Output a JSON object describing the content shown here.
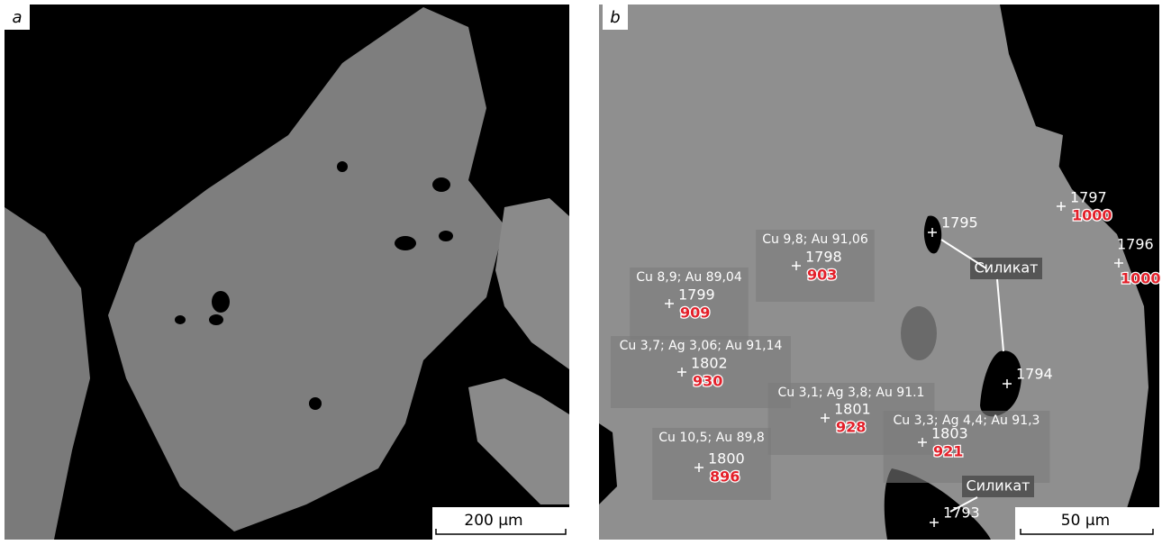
{
  "panels": [
    {
      "label": "a",
      "scale_bar": "200 μm"
    },
    {
      "label": "b",
      "scale_bar": "50 μm",
      "points": [
        {
          "id": "1797",
          "value": "1000"
        },
        {
          "id": "1795"
        },
        {
          "id": "1796",
          "value": "1000"
        },
        {
          "composition": "Cu 9,8; Au 91,06",
          "id": "1798",
          "value": "903"
        },
        {
          "composition": "Cu 8,9; Au 89,04",
          "id": "1799",
          "value": "909"
        },
        {
          "composition": "Cu 3,7; Ag 3,06; Au 91,14",
          "id": "1802",
          "value": "930"
        },
        {
          "id": "1794"
        },
        {
          "composition": "Cu 3,1; Ag 3,8; Au 91.1",
          "id": "1801",
          "value": "928"
        },
        {
          "composition": "Cu 3,3; Ag 4,4; Au 91,3",
          "id": "1803",
          "value": "921"
        },
        {
          "composition": "Cu 10,5; Au 89,8",
          "id": "1800",
          "value": "896"
        },
        {
          "id": "1793"
        }
      ],
      "silicate_labels": [
        "Силикат",
        "Силикат"
      ]
    }
  ]
}
